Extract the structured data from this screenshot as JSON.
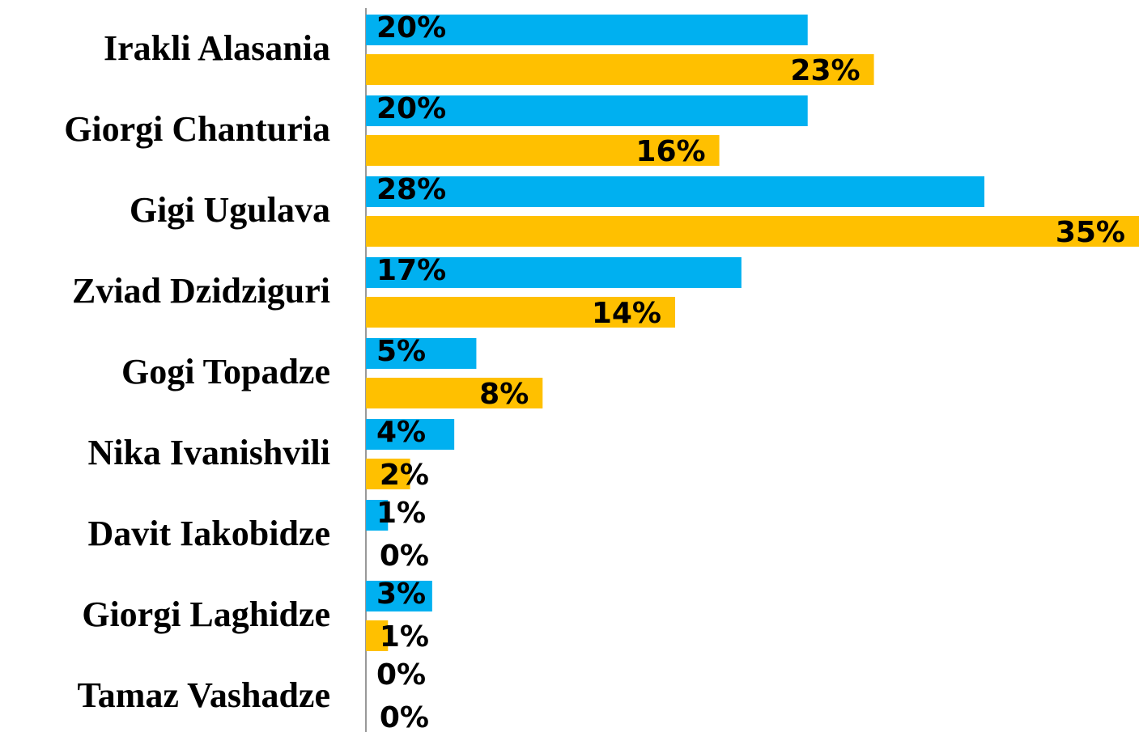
{
  "chart_data": {
    "type": "bar",
    "orientation": "horizontal",
    "categories": [
      "Irakli Alasania",
      "Giorgi Chanturia",
      "Gigi Ugulava",
      "Zviad Dzidziguri",
      "Gogi Topadze",
      "Nika Ivanishvili",
      "Davit Iakobidze",
      "Giorgi Laghidze",
      "Tamaz Vashadze"
    ],
    "series": [
      {
        "color": "#00b0f0",
        "values": [
          20,
          20,
          28,
          17,
          5,
          4,
          1,
          3,
          0
        ],
        "value_labels": [
          "20%",
          "20%",
          "28%",
          "17%",
          "5%",
          "4%",
          "1%",
          "3%",
          "0%"
        ]
      },
      {
        "color": "#ffc000",
        "values": [
          23,
          16,
          35,
          14,
          8,
          2,
          0,
          1,
          0
        ],
        "value_labels": [
          "23%",
          "16%",
          "35%",
          "14%",
          "8%",
          "2%",
          "0%",
          "1%",
          "0%"
        ]
      }
    ]
  }
}
